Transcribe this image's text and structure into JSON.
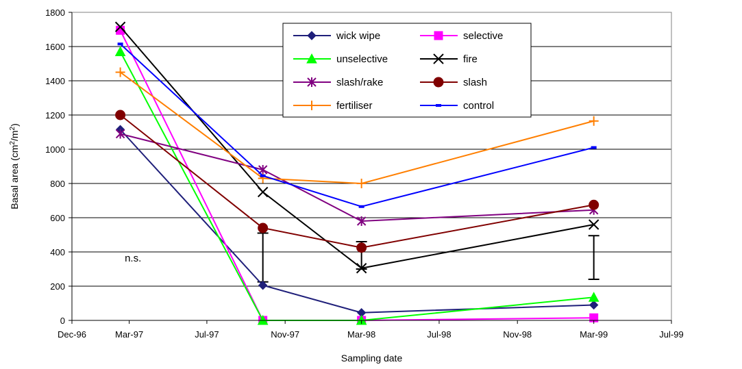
{
  "chart_data": {
    "type": "line",
    "xlabel": "Sampling date",
    "ylabel_main": "Basal area (cm",
    "ylabel_sup1": "2",
    "ylabel_mid": "/m",
    "ylabel_sup2": "2",
    "ylabel_end": ")",
    "ylim": [
      0,
      1800
    ],
    "yticks": [
      0,
      200,
      400,
      600,
      800,
      1000,
      1200,
      1400,
      1600,
      1800
    ],
    "xlim": [
      "1996-12-01",
      "1999-07-01"
    ],
    "xticks": [
      {
        "date": "1996-12-01",
        "label": "Dec-96"
      },
      {
        "date": "1997-03-01",
        "label": "Mar-97"
      },
      {
        "date": "1997-07-01",
        "label": "Jul-97"
      },
      {
        "date": "1997-11-01",
        "label": "Nov-97"
      },
      {
        "date": "1998-03-01",
        "label": "Mar-98"
      },
      {
        "date": "1998-07-01",
        "label": "Jul-98"
      },
      {
        "date": "1998-11-01",
        "label": "Nov-98"
      },
      {
        "date": "1999-03-01",
        "label": "Mar-99"
      },
      {
        "date": "1999-07-01",
        "label": "Jul-99"
      }
    ],
    "x_dates": [
      "1997-02-15",
      "1997-09-27",
      "1998-03-01",
      "1999-03-01"
    ],
    "grid": "horizontal",
    "legend_position": "top-center",
    "series": [
      {
        "name": "wick wipe",
        "color": "#1f1f7a",
        "marker": "diamond",
        "values": [
          1115,
          205,
          45,
          90
        ]
      },
      {
        "name": "selective",
        "color": "#ff00ff",
        "marker": "square",
        "values": [
          1695,
          0,
          0,
          15
        ]
      },
      {
        "name": "unselective",
        "color": "#00ff00",
        "marker": "triangle",
        "values": [
          1570,
          0,
          0,
          135
        ]
      },
      {
        "name": "fire",
        "color": "#000000",
        "marker": "x",
        "values": [
          1715,
          750,
          305,
          560
        ]
      },
      {
        "name": "slash/rake",
        "color": "#800080",
        "marker": "asterisk",
        "values": [
          1090,
          880,
          580,
          645
        ]
      },
      {
        "name": "slash",
        "color": "#800000",
        "marker": "circle",
        "values": [
          1200,
          540,
          425,
          675
        ]
      },
      {
        "name": "fertiliser",
        "color": "#ff7f00",
        "marker": "plus",
        "values": [
          1450,
          830,
          800,
          1165
        ]
      },
      {
        "name": "control",
        "color": "#0000ff",
        "marker": "dash",
        "values": [
          1615,
          845,
          665,
          1010
        ]
      }
    ],
    "annotations": [
      {
        "text": "n.s.",
        "date": "1997-02-22",
        "value": 365
      }
    ],
    "error_bars": [
      {
        "date": "1997-09-27",
        "low": 225,
        "high": 510
      },
      {
        "date": "1998-03-01",
        "low": 300,
        "high": 460
      },
      {
        "date": "1999-03-01",
        "low": 240,
        "high": 495
      }
    ]
  }
}
